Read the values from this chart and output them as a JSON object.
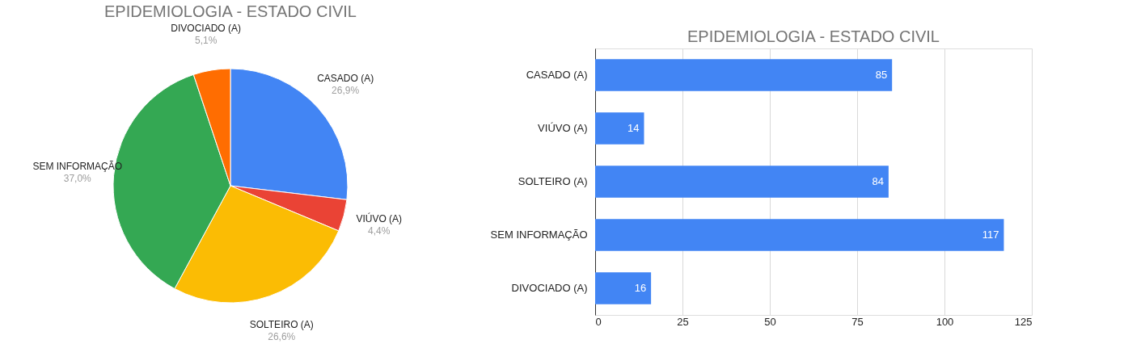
{
  "chart_data": [
    {
      "type": "pie",
      "title": "EPIDEMIOLOGIA - ESTADO CIVIL",
      "categories": [
        "CASADO (A)",
        "VIÚVO (A)",
        "SOLTEIRO (A)",
        "SEM INFORMAÇÃO",
        "DIVOCIADO (A)"
      ],
      "values": [
        26.9,
        4.4,
        26.6,
        37.0,
        5.1
      ],
      "value_labels": [
        "26,9%",
        "4,4%",
        "26,6%",
        "37,0%",
        "5,1%"
      ],
      "colors": [
        "#4285f4",
        "#ea4335",
        "#fbbc04",
        "#34a853",
        "#ff6d01"
      ]
    },
    {
      "type": "bar",
      "orientation": "horizontal",
      "title": "EPIDEMIOLOGIA - ESTADO CIVIL",
      "categories": [
        "CASADO (A)",
        "VIÚVO (A)",
        "SOLTEIRO (A)",
        "SEM INFORMAÇÃO",
        "DIVOCIADO (A)"
      ],
      "values": [
        85,
        14,
        84,
        117,
        16
      ],
      "color": "#4285f4",
      "xlim": [
        0,
        125
      ],
      "xticks": [
        0,
        25,
        50,
        75,
        100,
        125
      ],
      "grid": "x",
      "data_labels": true
    }
  ]
}
